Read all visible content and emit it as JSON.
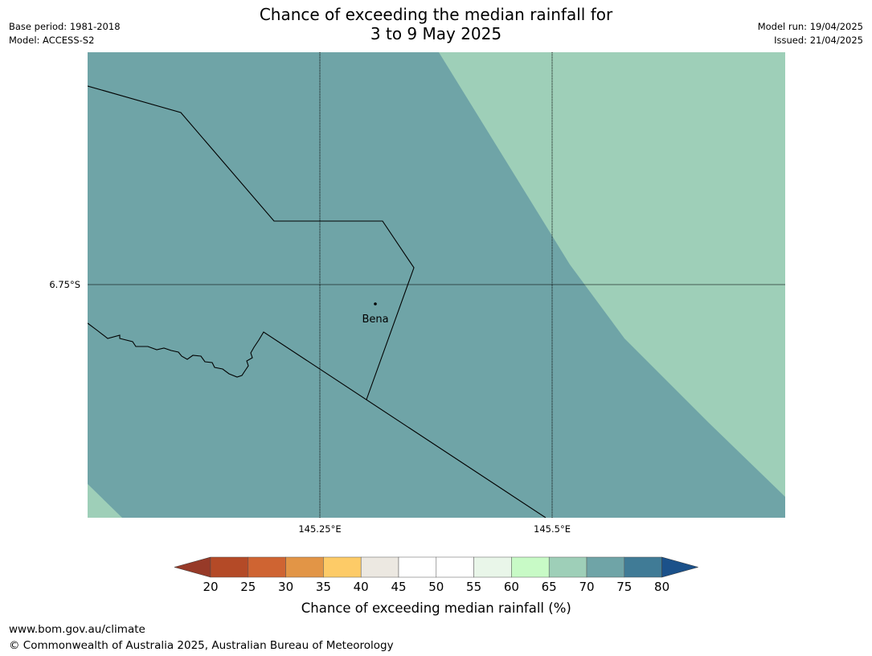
{
  "header": {
    "title_line1": "Chance of exceeding the median rainfall for",
    "title_line2": "3 to 9 May 2025",
    "base_period": "Base period: 1981-2018",
    "model": "Model: ACCESS-S2",
    "model_run": "Model run: 19/04/2025",
    "issued": "Issued: 21/04/2025"
  },
  "map": {
    "latitude_label": "6.75°S",
    "longitude_labels": [
      "145.25°E",
      "145.5°E"
    ],
    "town": "Bena",
    "region_colors": {
      "category_70_75": "#6fa4a7",
      "category_65_70": "#9ecfb8"
    }
  },
  "legend": {
    "title": "Chance of exceeding median rainfall (%)",
    "ticks": [
      "20",
      "25",
      "30",
      "35",
      "40",
      "45",
      "50",
      "55",
      "60",
      "65",
      "70",
      "75",
      "80"
    ],
    "colors": [
      "#973a28",
      "#b44a27",
      "#cf6432",
      "#e29546",
      "#fdcb67",
      "#ece8e1",
      "#ffffff",
      "#ffffff",
      "#e9f6e9",
      "#c8fac6",
      "#9ecfb8",
      "#6fa4a7",
      "#407b96",
      "#1b518a"
    ]
  },
  "footer": {
    "url": "www.bom.gov.au/climate",
    "copyright": "© Commonwealth of Australia 2025, Australian Bureau of Meteorology"
  }
}
